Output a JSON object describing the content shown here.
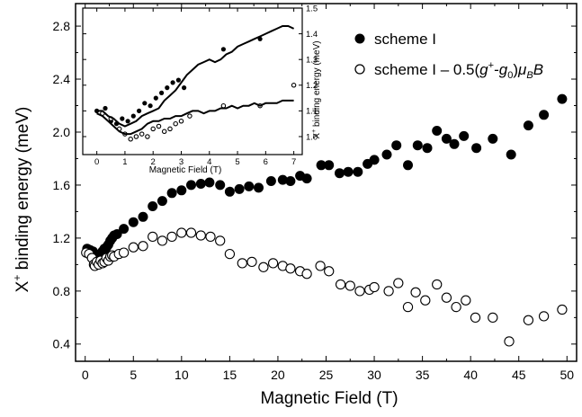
{
  "chart_data": [
    {
      "type": "scatter",
      "title": "",
      "xlabel": "Magnetic Field (T)",
      "ylabel": "X⁺ binding energy (meV)",
      "ylabel_base": "X",
      "ylabel_sup": "+",
      "ylabel_rest": " binding energy (meV)",
      "xlim": [
        -1,
        51
      ],
      "ylim": [
        0.27,
        2.97
      ],
      "xticks": [
        0,
        5,
        10,
        15,
        20,
        25,
        30,
        35,
        40,
        45,
        50
      ],
      "yticks": [
        0.4,
        0.8,
        1.2,
        1.6,
        2.0,
        2.4,
        2.8
      ],
      "ytick_labels": [
        "0.4",
        "0.8",
        "1.2",
        "1.6",
        "2.0",
        "2.4",
        "2.8"
      ],
      "grid": false,
      "legend_position": "top-right",
      "series": [
        {
          "name": "scheme I",
          "marker": "filled-circle",
          "color": "#000000",
          "x": [
            0.2,
            0.5,
            0.8,
            1.0,
            1.2,
            1.4,
            1.6,
            1.8,
            2.0,
            2.2,
            2.4,
            2.6,
            2.8,
            3.0,
            3.3,
            4.0,
            5.0,
            6.0,
            7.0,
            8.0,
            9.0,
            10.0,
            11.0,
            12.0,
            12.9,
            14.0,
            15.0,
            16.0,
            17.0,
            18.0,
            19.3,
            20.5,
            21.3,
            22.3,
            23.0,
            24.5,
            25.3,
            26.4,
            27.3,
            28.3,
            29.3,
            30.0,
            31.3,
            32.3,
            33.5,
            34.5,
            35.5,
            36.5,
            37.5,
            38.3,
            39.3,
            40.6,
            42.3,
            44.2,
            46.0,
            47.6,
            49.5
          ],
          "values": [
            1.12,
            1.11,
            1.1,
            1.05,
            1.07,
            1.06,
            1.08,
            1.1,
            1.12,
            1.13,
            1.15,
            1.18,
            1.2,
            1.22,
            1.23,
            1.27,
            1.32,
            1.36,
            1.44,
            1.48,
            1.54,
            1.56,
            1.6,
            1.61,
            1.62,
            1.6,
            1.55,
            1.57,
            1.59,
            1.58,
            1.63,
            1.64,
            1.63,
            1.67,
            1.65,
            1.75,
            1.75,
            1.69,
            1.7,
            1.7,
            1.76,
            1.79,
            1.83,
            1.9,
            1.75,
            1.9,
            1.88,
            2.01,
            1.95,
            1.91,
            1.97,
            1.88,
            1.95,
            1.83,
            2.05,
            2.13,
            2.25
          ]
        },
        {
          "name": "scheme I – 0.5(g⁺-g₀)μ_B B",
          "marker": "open-circle",
          "color": "#000000",
          "x": [
            0.1,
            0.4,
            0.7,
            0.9,
            1.0,
            1.2,
            1.4,
            1.6,
            1.8,
            2.0,
            2.2,
            2.4,
            2.6,
            2.8,
            3.0,
            3.5,
            4.0,
            5.0,
            6.0,
            7.0,
            8.0,
            9.0,
            10.0,
            11.0,
            12.0,
            13.0,
            14.0,
            15.0,
            16.3,
            17.3,
            18.5,
            19.5,
            20.5,
            21.3,
            22.3,
            23.0,
            24.4,
            25.3,
            26.5,
            27.5,
            28.5,
            29.5,
            30.0,
            31.5,
            32.5,
            33.5,
            34.3,
            35.3,
            36.5,
            37.5,
            38.5,
            39.5,
            40.5,
            42.3,
            44.0,
            46.0,
            47.6,
            49.5
          ],
          "values": [
            1.09,
            1.08,
            1.05,
            1.0,
            0.99,
            1.02,
            1.0,
            1.03,
            1.01,
            1.02,
            1.05,
            1.03,
            1.06,
            1.07,
            1.06,
            1.08,
            1.09,
            1.13,
            1.14,
            1.21,
            1.18,
            1.21,
            1.24,
            1.24,
            1.22,
            1.21,
            1.18,
            1.08,
            1.01,
            1.02,
            0.98,
            1.01,
            0.99,
            0.97,
            0.95,
            0.93,
            0.99,
            0.95,
            0.85,
            0.84,
            0.8,
            0.81,
            0.83,
            0.8,
            0.86,
            0.68,
            0.79,
            0.73,
            0.85,
            0.75,
            0.68,
            0.73,
            0.6,
            0.6,
            0.42,
            0.58,
            0.61,
            0.66
          ]
        }
      ]
    },
    {
      "type": "scatter",
      "title": "",
      "inset": true,
      "xlabel": "Magnetic Field (T)",
      "ylabel": "X⁺ binding energy (meV)",
      "ylabel_base": "X",
      "ylabel_sup": "+",
      "ylabel_rest": " binding energy (meV)",
      "ylabel_side": "right",
      "xlim": [
        -0.5,
        7.3
      ],
      "ylim": [
        0.93,
        1.5
      ],
      "xticks": [
        0,
        1,
        2,
        3,
        4,
        5,
        6,
        7
      ],
      "yticks": [
        1.0,
        1.1,
        1.2,
        1.3,
        1.4,
        1.5
      ],
      "ytick_labels": [
        "1.0",
        "1.1",
        "1.2",
        "1.3",
        "1.4",
        "1.5"
      ],
      "grid": false,
      "series": [
        {
          "marker": "filled-circle",
          "color": "#000000",
          "x": [
            0.0,
            0.3,
            0.5,
            0.7,
            0.9,
            1.1,
            1.3,
            1.5,
            1.7,
            1.9,
            2.1,
            2.3,
            2.5,
            2.7,
            2.9,
            3.1,
            4.5,
            5.8
          ],
          "values": [
            1.1,
            1.11,
            1.06,
            1.05,
            1.07,
            1.06,
            1.08,
            1.1,
            1.13,
            1.12,
            1.15,
            1.17,
            1.19,
            1.21,
            1.22,
            1.19,
            1.34,
            1.38
          ]
        },
        {
          "marker": "open-circle",
          "color": "#000000",
          "x": [
            0.2,
            0.5,
            0.8,
            1.0,
            1.2,
            1.4,
            1.6,
            1.8,
            2.0,
            2.2,
            2.4,
            2.6,
            2.8,
            3.0,
            3.3,
            4.5,
            5.8,
            7.0
          ],
          "values": [
            1.09,
            1.07,
            1.03,
            1.01,
            0.99,
            1.0,
            1.01,
            1.0,
            1.03,
            1.04,
            1.02,
            1.03,
            1.05,
            1.06,
            1.08,
            1.12,
            1.12,
            1.2
          ]
        },
        {
          "type": "line",
          "color": "#000000",
          "x": [
            0.0,
            0.2,
            0.4,
            0.6,
            0.8,
            1.0,
            1.2,
            1.4,
            1.6,
            1.8,
            2.0,
            2.2,
            2.4,
            2.6,
            2.8,
            3.0,
            3.2,
            3.4,
            3.6,
            3.8,
            4.0,
            4.2,
            4.4,
            4.6,
            4.8,
            5.0,
            5.2,
            5.4,
            5.6,
            5.8,
            6.0,
            6.2,
            6.4,
            6.6,
            6.8,
            7.0
          ],
          "values": [
            1.1,
            1.1,
            1.08,
            1.07,
            1.05,
            1.04,
            1.05,
            1.06,
            1.08,
            1.09,
            1.1,
            1.11,
            1.14,
            1.16,
            1.18,
            1.21,
            1.24,
            1.26,
            1.28,
            1.29,
            1.3,
            1.29,
            1.3,
            1.32,
            1.33,
            1.35,
            1.36,
            1.37,
            1.38,
            1.39,
            1.4,
            1.41,
            1.42,
            1.43,
            1.43,
            1.42
          ]
        },
        {
          "type": "line",
          "color": "#000000",
          "x": [
            0.0,
            0.2,
            0.4,
            0.6,
            0.8,
            1.0,
            1.2,
            1.4,
            1.6,
            1.8,
            2.0,
            2.2,
            2.4,
            2.6,
            2.8,
            3.0,
            3.2,
            3.4,
            3.6,
            3.8,
            4.0,
            4.2,
            4.4,
            4.6,
            4.8,
            5.0,
            5.2,
            5.4,
            5.6,
            5.8,
            6.0,
            6.2,
            6.4,
            6.6,
            6.8,
            7.0
          ],
          "values": [
            1.09,
            1.08,
            1.06,
            1.04,
            1.02,
            1.01,
            1.01,
            1.02,
            1.03,
            1.05,
            1.06,
            1.06,
            1.07,
            1.07,
            1.08,
            1.08,
            1.09,
            1.1,
            1.1,
            1.09,
            1.1,
            1.1,
            1.11,
            1.11,
            1.12,
            1.11,
            1.12,
            1.12,
            1.13,
            1.12,
            1.13,
            1.13,
            1.13,
            1.14,
            1.14,
            1.14
          ]
        }
      ]
    }
  ],
  "legend": {
    "entry1": {
      "label": "scheme I"
    },
    "entry2": {
      "prefix": "scheme I – 0.5(",
      "g": "g",
      "sup": "+",
      "dash": "-",
      "g0": "g",
      "sub0": "0",
      "close": ")",
      "mu": "μ",
      "subB": "B",
      "B": "B"
    }
  }
}
